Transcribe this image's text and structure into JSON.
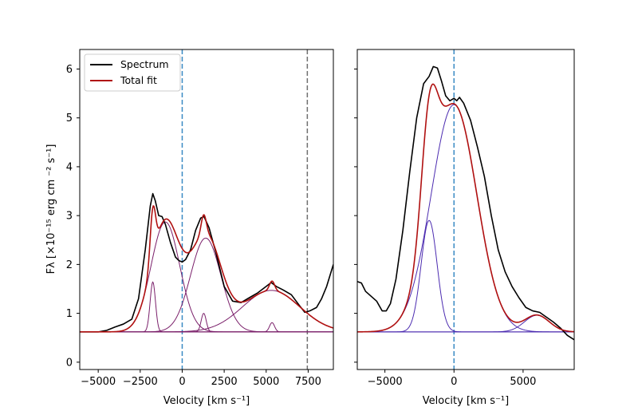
{
  "chart_data": [
    {
      "type": "line",
      "panel": "left",
      "xlabel": "Velocity [km s⁻¹]",
      "ylabel": "Fλ [×10⁻¹⁵ erg cm ⁻² s⁻¹]",
      "xlim": [
        -6100,
        9000
      ],
      "ylim": [
        -0.15,
        6.4
      ],
      "xticks": [
        -5000,
        -2500,
        0,
        2500,
        5000,
        7500
      ],
      "xtick_labels": [
        "−5000",
        "−2500",
        "0",
        "2500",
        "5000",
        "7500"
      ],
      "yticks": [
        0,
        1,
        2,
        3,
        4,
        5,
        6
      ],
      "ytick_labels": [
        "0",
        "1",
        "2",
        "3",
        "4",
        "5",
        "6"
      ],
      "legend": {
        "location": "top-left",
        "entries": [
          "Spectrum",
          "Total fit"
        ]
      },
      "vlines": [
        {
          "x": 0,
          "color": "#3a8ac4",
          "style": "dashed"
        },
        {
          "x": 7450,
          "color": "#6f6f6f",
          "style": "dashed"
        }
      ],
      "baseline": 0.62,
      "components": [
        {
          "name": "broad blue",
          "amp": 2.25,
          "center": -1000,
          "sigma": 850,
          "color": "#7a1f6a"
        },
        {
          "name": "narrow blue",
          "amp": 1.02,
          "center": -1750,
          "sigma": 160,
          "color": "#7a1f6a"
        },
        {
          "name": "broad mid",
          "amp": 1.92,
          "center": 1400,
          "sigma": 900,
          "color": "#7a1f6a"
        },
        {
          "name": "narrow mid",
          "amp": 0.38,
          "center": 1280,
          "sigma": 150,
          "color": "#7a1f6a"
        },
        {
          "name": "broad red",
          "amp": 0.85,
          "center": 5300,
          "sigma": 1700,
          "color": "#7a1f6a"
        },
        {
          "name": "narrow red",
          "amp": 0.19,
          "center": 5350,
          "sigma": 150,
          "color": "#7a1f6a"
        }
      ],
      "series": [
        {
          "name": "Spectrum",
          "color": "#000000",
          "x": [
            -6100,
            -5000,
            -4500,
            -4000,
            -3500,
            -3000,
            -2600,
            -2200,
            -1900,
            -1750,
            -1600,
            -1400,
            -1200,
            -1000,
            -700,
            -400,
            -200,
            0,
            200,
            500,
            800,
            1100,
            1300,
            1600,
            2000,
            2500,
            3000,
            3500,
            4000,
            4500,
            5000,
            5300,
            5600,
            6000,
            6500,
            7000,
            7300,
            7600,
            8000,
            8300,
            8600,
            9000
          ],
          "y": [
            0.62,
            0.62,
            0.65,
            0.72,
            0.78,
            0.88,
            1.3,
            2.3,
            3.2,
            3.45,
            3.3,
            3.0,
            2.98,
            2.82,
            2.45,
            2.15,
            2.08,
            2.05,
            2.1,
            2.3,
            2.7,
            2.95,
            2.98,
            2.75,
            2.25,
            1.55,
            1.25,
            1.22,
            1.32,
            1.42,
            1.55,
            1.63,
            1.55,
            1.48,
            1.38,
            1.15,
            1.02,
            1.05,
            1.12,
            1.3,
            1.55,
            2.0
          ]
        },
        {
          "name": "Total fit",
          "color": "#b01010",
          "model": "baseline + sum of components"
        }
      ]
    },
    {
      "type": "line",
      "panel": "right",
      "xlabel": "Velocity [km s⁻¹]",
      "xlim": [
        -7000,
        8700
      ],
      "ylim": [
        -0.15,
        6.4
      ],
      "xticks": [
        -5000,
        0,
        5000
      ],
      "xtick_labels": [
        "−5000",
        "0",
        "5000"
      ],
      "yticks": [
        0,
        1,
        2,
        3,
        4,
        5,
        6
      ],
      "vlines": [
        {
          "x": 0,
          "color": "#3a8ac4",
          "style": "dashed"
        }
      ],
      "baseline": 0.62,
      "components": [
        {
          "name": "narrow blue",
          "amp": 2.28,
          "center": -1800,
          "sigma": 580,
          "color": "#4b2bb0"
        },
        {
          "name": "broad",
          "amp": 4.65,
          "center": 0,
          "sigma": 1650,
          "color": "#4b2bb0"
        },
        {
          "name": "red wing",
          "amp": 0.34,
          "center": 6000,
          "sigma": 900,
          "color": "#4b2bb0"
        }
      ],
      "series": [
        {
          "name": "Spectrum",
          "color": "#000000",
          "x": [
            -7000,
            -6700,
            -6400,
            -6000,
            -5600,
            -5200,
            -4900,
            -4600,
            -4200,
            -3700,
            -3200,
            -2700,
            -2200,
            -1800,
            -1500,
            -1200,
            -900,
            -600,
            -300,
            0,
            200,
            400,
            700,
            1200,
            1700,
            2200,
            2700,
            3200,
            3700,
            4200,
            4700,
            5200,
            5700,
            6200,
            6700,
            7200,
            7700,
            8200,
            8700
          ],
          "y": [
            1.65,
            1.62,
            1.45,
            1.35,
            1.25,
            1.05,
            1.05,
            1.2,
            1.7,
            2.7,
            3.9,
            5.0,
            5.7,
            5.85,
            6.05,
            6.02,
            5.75,
            5.45,
            5.35,
            5.4,
            5.35,
            5.42,
            5.3,
            4.95,
            4.4,
            3.8,
            3.0,
            2.3,
            1.85,
            1.55,
            1.32,
            1.12,
            1.05,
            1.02,
            0.92,
            0.82,
            0.7,
            0.55,
            0.46
          ]
        },
        {
          "name": "Total fit",
          "color": "#b01010",
          "model": "baseline + sum of components"
        }
      ]
    }
  ]
}
